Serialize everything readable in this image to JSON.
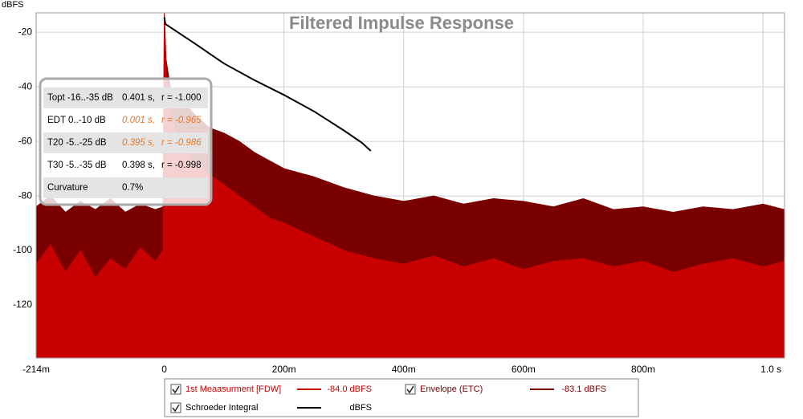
{
  "chart_data": {
    "type": "line",
    "title": "Filtered Impulse Response",
    "ylabel": "dBFS",
    "xlim": [
      -0.214,
      1.036
    ],
    "xticks": [
      {
        "value": -0.214,
        "label": "-214m"
      },
      0,
      {
        "value": 0.2,
        "label": "200m"
      },
      {
        "value": 0.4,
        "label": "400m"
      },
      {
        "value": 0.6,
        "label": "600m"
      },
      {
        "value": 0.8,
        "label": "800m"
      },
      {
        "value": 1.0,
        "label": "1.0 s"
      }
    ],
    "ylim": [
      -139.4,
      -12.9
    ],
    "yticks": [
      -20,
      -40,
      -60,
      -80,
      -100,
      -120
    ],
    "grid": true,
    "series": [
      {
        "name": "Envelope (ETC)",
        "color": "#7a0000",
        "kind": "area",
        "readout": "-83.1 dBFS",
        "x": [
          -0.214,
          -0.19,
          -0.165,
          -0.14,
          -0.115,
          -0.09,
          -0.065,
          -0.04,
          -0.015,
          -0.002,
          0,
          0.003,
          0.01,
          0.025,
          0.05,
          0.075,
          0.1,
          0.125,
          0.15,
          0.175,
          0.2,
          0.25,
          0.3,
          0.35,
          0.4,
          0.45,
          0.5,
          0.55,
          0.6,
          0.65,
          0.7,
          0.75,
          0.8,
          0.85,
          0.9,
          0.95,
          1.0,
          1.036
        ],
        "values": [
          -84,
          -80,
          -86,
          -82,
          -85,
          -81,
          -86,
          -83,
          -85,
          -84,
          -13,
          -30,
          -40,
          -44,
          -50,
          -55,
          -57,
          -60,
          -64,
          -67,
          -70,
          -73,
          -77,
          -80,
          -82,
          -80,
          -83,
          -81,
          -82,
          -84,
          -81,
          -85,
          -84,
          -86,
          -84,
          -85,
          -83,
          -85
        ]
      },
      {
        "name": "1st Meaasurment [FDW]",
        "color": "#c80000",
        "kind": "area",
        "readout": "-84.0 dBFS",
        "x": [
          -0.214,
          -0.19,
          -0.165,
          -0.14,
          -0.115,
          -0.09,
          -0.065,
          -0.04,
          -0.015,
          -0.002,
          0,
          0.003,
          0.01,
          0.025,
          0.05,
          0.075,
          0.1,
          0.125,
          0.15,
          0.175,
          0.2,
          0.25,
          0.3,
          0.35,
          0.4,
          0.45,
          0.5,
          0.55,
          0.6,
          0.65,
          0.7,
          0.75,
          0.8,
          0.85,
          0.9,
          0.95,
          1.0,
          1.036
        ],
        "values": [
          -105,
          -98,
          -108,
          -100,
          -110,
          -103,
          -107,
          -99,
          -104,
          -100,
          -14,
          -35,
          -50,
          -60,
          -68,
          -72,
          -76,
          -80,
          -84,
          -88,
          -90,
          -95,
          -100,
          -103,
          -105,
          -102,
          -106,
          -103,
          -107,
          -104,
          -103,
          -106,
          -104,
          -108,
          -105,
          -103,
          -106,
          -104
        ]
      },
      {
        "name": "Schroeder Integral",
        "color": "#000000",
        "kind": "line",
        "readout": "dBFS",
        "x": [
          0,
          0.002,
          0.05,
          0.1,
          0.15,
          0.2,
          0.25,
          0.3,
          0.33,
          0.345
        ],
        "values": [
          -14.5,
          -17,
          -24,
          -31.5,
          -37.5,
          -43,
          -49,
          -56,
          -60.5,
          -63.5
        ]
      }
    ],
    "legend_order": [
      1,
      0,
      2
    ],
    "decay_table": [
      {
        "label": "Topt -16..-35 dB",
        "value": "0.401 s,",
        "r": "r = -1.000",
        "color": "#000000"
      },
      {
        "label": "EDT  0..-10 dB",
        "value": "0.001 s,",
        "r": "r = -0.965",
        "color": "#e87722"
      },
      {
        "label": "T20 -5..-25 dB",
        "value": "0.395 s,",
        "r": "r = -0.986",
        "color": "#e87722"
      },
      {
        "label": "T30 -5..-35 dB",
        "value": "0.398 s,",
        "r": "r = -0.998",
        "color": "#000000"
      },
      {
        "label": "Curvature",
        "value": "0.7%",
        "color": "#000000"
      }
    ]
  }
}
